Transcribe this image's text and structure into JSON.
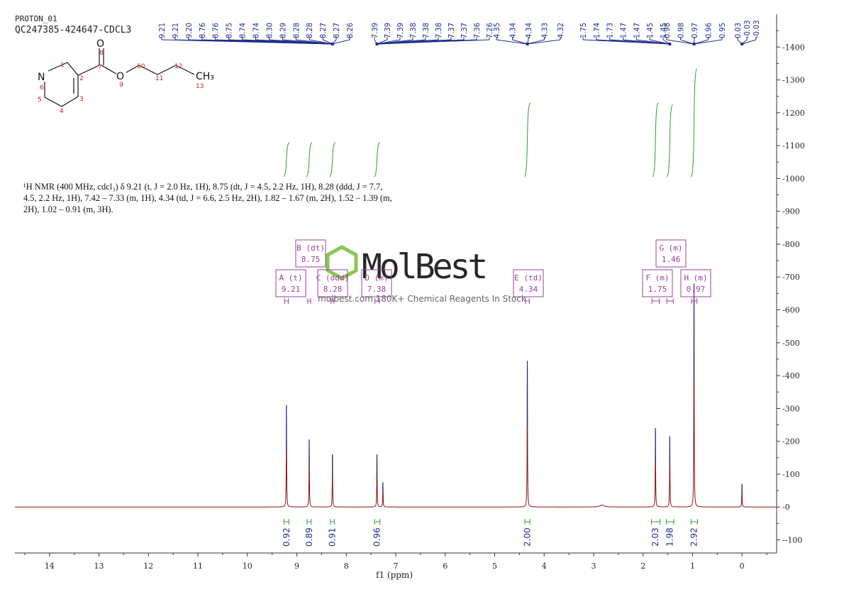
{
  "header": {
    "experiment": "PROTON_01",
    "sample_id": "QC247385-424647-CDCL3"
  },
  "summary": {
    "lines": [
      "¹H NMR (400 MHz, cdcl₃) δ 9.21 (t, J = 2.0 Hz, 1H), 8.75 (dt, J = 4.5, 2.2 Hz, 1H), 8.28 (ddd, J = 7.7,",
      "4.5, 2.2 Hz, 1H), 7.42 – 7.33 (m, 1H), 4.34 (td, J = 6.6, 2.5 Hz, 2H), 1.82 – 1.67 (m, 2H), 1.52 – 1.39 (m,",
      "2H), 1.02 – 0.91 (m, 3H)."
    ]
  },
  "molecule": {
    "atoms": [
      {
        "label": "N",
        "n": "6"
      },
      {
        "label": "O",
        "n": "8"
      },
      {
        "label": "O",
        "n": "9"
      },
      {
        "label": "CH₃",
        "n": "13"
      }
    ],
    "numbers": [
      "1",
      "2",
      "3",
      "4",
      "5",
      "7",
      "10",
      "11",
      "12"
    ]
  },
  "watermark": {
    "brand": "MolBest",
    "tagline": "molbest.com 180K+ Chemical Reagents In Stock"
  },
  "chart_data": {
    "type": "line",
    "xlabel": "f1 (ppm)",
    "xlim": [
      14.7,
      -0.7
    ],
    "ylim": [
      -140,
      1500
    ],
    "x_ticks": [
      14,
      13,
      12,
      11,
      10,
      9,
      8,
      7,
      6,
      5,
      4,
      3,
      2,
      1,
      0
    ],
    "y_ticks": [
      -100,
      0,
      100,
      200,
      300,
      400,
      500,
      600,
      700,
      800,
      900,
      1000,
      1100,
      1200,
      1300,
      1400
    ],
    "peak_labels": [
      "9.21",
      "9.21",
      "9.20",
      "8.76",
      "8.76",
      "8.75",
      "8.74",
      "8.74",
      "8.30",
      "8.29",
      "8.28",
      "8.28",
      "8.27",
      "8.27",
      "8.26",
      "7.39",
      "7.39",
      "7.39",
      "7.38",
      "7.38",
      "7.38",
      "7.37",
      "7.37",
      "7.36",
      "7.26",
      "4.35",
      "4.34",
      "4.34",
      "4.33",
      "4.32",
      "1.75",
      "1.74",
      "1.73",
      "1.47",
      "1.47",
      "1.45",
      "1.45",
      "0.98",
      "0.98",
      "0.97",
      "0.96",
      "0.95",
      "0.03",
      "-0.03",
      "-0.03"
    ],
    "label_groups": [
      {
        "start": 0,
        "end": 14,
        "apex": 8.28
      },
      {
        "start": 15,
        "end": 24,
        "apex": 7.38
      },
      {
        "start": 25,
        "end": 29,
        "apex": 4.34
      },
      {
        "start": 30,
        "end": 36,
        "apex": 1.46
      },
      {
        "start": 37,
        "end": 41,
        "apex": 0.97
      },
      {
        "start": 42,
        "end": 44,
        "apex": 0.0
      }
    ],
    "peaks": [
      {
        "ppm": 9.21,
        "height": 310
      },
      {
        "ppm": 8.75,
        "height": 205
      },
      {
        "ppm": 8.28,
        "height": 160
      },
      {
        "ppm": 7.38,
        "height": 160
      },
      {
        "ppm": 7.26,
        "height": 75
      },
      {
        "ppm": 4.34,
        "height": 445
      },
      {
        "ppm": 1.75,
        "height": 240
      },
      {
        "ppm": 1.46,
        "height": 215
      },
      {
        "ppm": 0.97,
        "height": 680
      },
      {
        "ppm": 0.0,
        "height": 70
      }
    ],
    "multiplets": [
      {
        "letter": "A",
        "type": "t",
        "shift": "9.21",
        "range": [
          9.25,
          9.17
        ]
      },
      {
        "letter": "B",
        "type": "dt",
        "shift": "8.75",
        "range": [
          8.78,
          8.72
        ]
      },
      {
        "letter": "C",
        "type": "ddd",
        "shift": "8.28",
        "range": [
          8.31,
          8.25
        ]
      },
      {
        "letter": "D",
        "type": "m",
        "shift": "7.38",
        "range": [
          7.42,
          7.33
        ]
      },
      {
        "letter": "E",
        "type": "td",
        "shift": "4.34",
        "range": [
          4.38,
          4.3
        ]
      },
      {
        "letter": "F",
        "type": "m",
        "shift": "1.75",
        "range": [
          1.82,
          1.67
        ]
      },
      {
        "letter": "G",
        "type": "m",
        "shift": "1.46",
        "range": [
          1.52,
          1.39
        ]
      },
      {
        "letter": "H",
        "type": "m",
        "shift": "0.97",
        "range": [
          1.02,
          0.91
        ]
      }
    ],
    "integrals": [
      {
        "ppm": 9.21,
        "value": "0.92",
        "range": [
          9.26,
          9.16
        ]
      },
      {
        "ppm": 8.75,
        "value": "0.89",
        "range": [
          8.79,
          8.71
        ]
      },
      {
        "ppm": 8.28,
        "value": "0.91",
        "range": [
          8.32,
          8.24
        ]
      },
      {
        "ppm": 7.38,
        "value": "0.96",
        "range": [
          7.43,
          7.32
        ]
      },
      {
        "ppm": 4.34,
        "value": "2.00",
        "range": [
          4.39,
          4.29
        ]
      },
      {
        "ppm": 1.75,
        "value": "2.03",
        "range": [
          1.83,
          1.66
        ]
      },
      {
        "ppm": 1.46,
        "value": "1.98",
        "range": [
          1.53,
          1.38
        ]
      },
      {
        "ppm": 0.97,
        "value": "2.92",
        "range": [
          1.03,
          0.9
        ]
      }
    ],
    "colors": {
      "spectrum": "#8b1010",
      "peak_labels": "#1f2f8c",
      "integral_curve": "#2aa02a",
      "multiplet_box": "#9b3fa0",
      "axis": "#333333",
      "atom_numbers": "#cc2020"
    }
  }
}
